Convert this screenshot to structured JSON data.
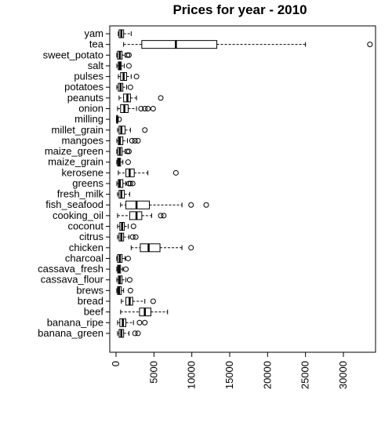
{
  "chart_data": {
    "type": "boxplot",
    "orientation": "horizontal",
    "title": "Prices for year -  2010",
    "xlim": [
      -500,
      34500
    ],
    "xticks": [
      0,
      5000,
      10000,
      15000,
      20000,
      25000,
      30000
    ],
    "xtick_labels": [
      "0",
      "5000",
      "10000",
      "15000",
      "20000",
      "25000",
      "30000"
    ],
    "grid": false,
    "categories": [
      "yam",
      "tea",
      "sweet_potato",
      "salt",
      "pulses",
      "potatoes",
      "peanuts",
      "onion",
      "milling",
      "millet_grain",
      "mangoes",
      "maize_green",
      "maize_grain",
      "kerosene",
      "greens",
      "fresh_milk",
      "fish_seafood",
      "cooking_oil",
      "coconut",
      "citrus",
      "chicken",
      "charcoal",
      "cassava_fresh",
      "cassava_flour",
      "brews",
      "bread",
      "beef",
      "banana_ripe",
      "banana_green"
    ],
    "boxes": [
      {
        "name": "yam",
        "whisker_low": 300,
        "q1": 400,
        "median": 700,
        "q3": 1000,
        "whisker_high": 2000,
        "outliers": []
      },
      {
        "name": "tea",
        "whisker_low": 1000,
        "q1": 3400,
        "median": 7900,
        "q3": 13300,
        "whisker_high": 25000,
        "outliers": [
          33500
        ]
      },
      {
        "name": "sweet_potato",
        "whisker_low": 100,
        "q1": 200,
        "median": 500,
        "q3": 800,
        "whisker_high": 1200,
        "outliers": [
          1500,
          1700
        ]
      },
      {
        "name": "salt",
        "whisker_low": 100,
        "q1": 300,
        "median": 500,
        "q3": 700,
        "whisker_high": 1100,
        "outliers": [
          1700
        ]
      },
      {
        "name": "pulses",
        "whisker_low": 300,
        "q1": 600,
        "median": 1000,
        "q3": 1400,
        "whisker_high": 2000,
        "outliers": [
          2700
        ]
      },
      {
        "name": "potatoes",
        "whisker_low": 100,
        "q1": 300,
        "median": 600,
        "q3": 900,
        "whisker_high": 1400,
        "outliers": [
          1900
        ]
      },
      {
        "name": "peanuts",
        "whisker_low": 400,
        "q1": 1000,
        "median": 1500,
        "q3": 1900,
        "whisker_high": 2700,
        "outliers": [
          5900
        ]
      },
      {
        "name": "onion",
        "whisker_low": 200,
        "q1": 600,
        "median": 1100,
        "q3": 1600,
        "whisker_high": 2700,
        "outliers": [
          3300,
          3800,
          4200,
          4900
        ]
      },
      {
        "name": "milling",
        "whisker_low": 50,
        "q1": 100,
        "median": 150,
        "q3": 200,
        "whisker_high": 300,
        "outliers": [
          400
        ]
      },
      {
        "name": "millet_grain",
        "whisker_low": 200,
        "q1": 400,
        "median": 700,
        "q3": 1200,
        "whisker_high": 1900,
        "outliers": [
          3800
        ]
      },
      {
        "name": "mangoes",
        "whisker_low": 100,
        "q1": 300,
        "median": 500,
        "q3": 900,
        "whisker_high": 1500,
        "outliers": [
          2100,
          2500,
          2900
        ]
      },
      {
        "name": "maize_green",
        "whisker_low": 100,
        "q1": 200,
        "median": 500,
        "q3": 800,
        "whisker_high": 1200,
        "outliers": [
          1500,
          1700
        ]
      },
      {
        "name": "maize_grain",
        "whisker_low": 100,
        "q1": 200,
        "median": 400,
        "q3": 600,
        "whisker_high": 900,
        "outliers": [
          1600
        ]
      },
      {
        "name": "kerosene",
        "whisker_low": 300,
        "q1": 1300,
        "median": 1800,
        "q3": 2400,
        "whisker_high": 4200,
        "outliers": [
          7900
        ]
      },
      {
        "name": "greens",
        "whisker_low": 100,
        "q1": 300,
        "median": 500,
        "q3": 900,
        "whisker_high": 1300,
        "outliers": [
          1700,
          1900,
          2200
        ]
      },
      {
        "name": "fresh_milk",
        "whisker_low": 200,
        "q1": 400,
        "median": 700,
        "q3": 1100,
        "whisker_high": 1800,
        "outliers": []
      },
      {
        "name": "fish_seafood",
        "whisker_low": 600,
        "q1": 1300,
        "median": 2700,
        "q3": 4400,
        "whisker_high": 8700,
        "outliers": [
          9900,
          11900
        ]
      },
      {
        "name": "cooking_oil",
        "whisker_low": 200,
        "q1": 1800,
        "median": 2700,
        "q3": 3400,
        "whisker_high": 4700,
        "outliers": [
          5900,
          6300
        ]
      },
      {
        "name": "coconut",
        "whisker_low": 200,
        "q1": 500,
        "median": 800,
        "q3": 1100,
        "whisker_high": 1600,
        "outliers": [
          2300
        ]
      },
      {
        "name": "citrus",
        "whisker_low": 200,
        "q1": 400,
        "median": 700,
        "q3": 1000,
        "whisker_high": 1700,
        "outliers": [
          2200,
          2600
        ]
      },
      {
        "name": "chicken",
        "whisker_low": 2000,
        "q1": 3200,
        "median": 4300,
        "q3": 5800,
        "whisker_high": 8700,
        "outliers": [
          9900
        ]
      },
      {
        "name": "charcoal",
        "whisker_low": 100,
        "q1": 200,
        "median": 500,
        "q3": 800,
        "whisker_high": 1200,
        "outliers": [
          1600
        ]
      },
      {
        "name": "cassava_fresh",
        "whisker_low": 100,
        "q1": 200,
        "median": 400,
        "q3": 600,
        "whisker_high": 900,
        "outliers": [
          1300
        ]
      },
      {
        "name": "cassava_flour",
        "whisker_low": 100,
        "q1": 300,
        "median": 500,
        "q3": 800,
        "whisker_high": 1300,
        "outliers": [
          1800
        ]
      },
      {
        "name": "brews",
        "whisker_low": 100,
        "q1": 200,
        "median": 400,
        "q3": 700,
        "whisker_high": 1000,
        "outliers": [
          1900
        ]
      },
      {
        "name": "bread",
        "whisker_low": 700,
        "q1": 1300,
        "median": 1800,
        "q3": 2200,
        "whisker_high": 3800,
        "outliers": [
          4900
        ]
      },
      {
        "name": "beef",
        "whisker_low": 600,
        "q1": 3100,
        "median": 3800,
        "q3": 4600,
        "whisker_high": 6800,
        "outliers": []
      },
      {
        "name": "banana_ripe",
        "whisker_low": 200,
        "q1": 500,
        "median": 900,
        "q3": 1300,
        "whisker_high": 2300,
        "outliers": [
          3100,
          3800
        ]
      },
      {
        "name": "banana_green",
        "whisker_low": 200,
        "q1": 400,
        "median": 700,
        "q3": 1000,
        "whisker_high": 1700,
        "outliers": [
          2500,
          2900
        ]
      }
    ]
  }
}
